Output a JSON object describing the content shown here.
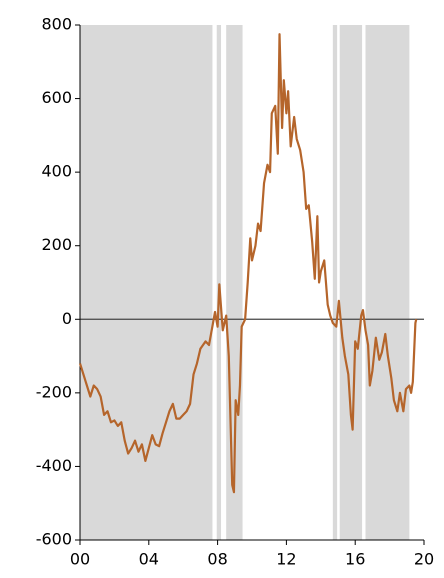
{
  "chart_data": {
    "type": "line",
    "x": [
      0,
      0.2,
      0.4,
      0.6,
      0.8,
      1.0,
      1.2,
      1.4,
      1.6,
      1.8,
      2.0,
      2.2,
      2.4,
      2.6,
      2.8,
      3.0,
      3.2,
      3.4,
      3.6,
      3.8,
      4.0,
      4.2,
      4.4,
      4.6,
      4.8,
      5.0,
      5.2,
      5.4,
      5.6,
      5.8,
      6.0,
      6.2,
      6.4,
      6.6,
      6.8,
      7.0,
      7.3,
      7.5,
      7.85,
      8.0,
      8.1,
      8.3,
      8.5,
      8.65,
      8.85,
      8.95,
      9.05,
      9.2,
      9.3,
      9.4,
      9.6,
      9.75,
      9.9,
      10.0,
      10.2,
      10.35,
      10.5,
      10.7,
      10.9,
      11.05,
      11.15,
      11.35,
      11.5,
      11.6,
      11.75,
      11.85,
      12.0,
      12.1,
      12.25,
      12.45,
      12.6,
      12.8,
      13.0,
      13.15,
      13.3,
      13.5,
      13.65,
      13.8,
      13.9,
      14.0,
      14.2,
      14.4,
      14.55,
      14.7,
      14.9,
      15.05,
      15.25,
      15.4,
      15.6,
      15.75,
      15.85,
      16.0,
      16.15,
      16.35,
      16.45,
      16.6,
      16.75,
      16.85,
      17.0,
      17.2,
      17.4,
      17.55,
      17.75,
      17.9,
      18.1,
      18.25,
      18.45,
      18.6,
      18.8,
      18.95,
      19.15,
      19.25,
      19.35,
      19.5,
      19.55
    ],
    "series": [
      {
        "color": "#b5652b",
        "values": [
          -120,
          -150,
          -180,
          -210,
          -180,
          -190,
          -210,
          -260,
          -250,
          -280,
          -275,
          -290,
          -280,
          -330,
          -365,
          -350,
          -330,
          -360,
          -340,
          -385,
          -350,
          -315,
          -340,
          -345,
          -310,
          -280,
          -250,
          -230,
          -270,
          -270,
          -260,
          -250,
          -230,
          -150,
          -120,
          -80,
          -60,
          -70,
          20,
          -20,
          95,
          -30,
          10,
          -100,
          -450,
          -470,
          -220,
          -260,
          -180,
          -20,
          0,
          100,
          220,
          160,
          200,
          260,
          240,
          370,
          420,
          400,
          560,
          580,
          450,
          775,
          520,
          650,
          560,
          620,
          470,
          550,
          490,
          460,
          400,
          300,
          310,
          210,
          110,
          280,
          100,
          130,
          160,
          40,
          10,
          -10,
          -20,
          50,
          -50,
          -100,
          -150,
          -260,
          -300,
          -60,
          -80,
          10,
          25,
          -30,
          -70,
          -180,
          -140,
          -50,
          -110,
          -90,
          -40,
          -100,
          -160,
          -220,
          -250,
          -200,
          -250,
          -190,
          -180,
          -200,
          -170,
          -10,
          0
        ]
      }
    ],
    "shaded_regions": [
      [
        0,
        7.7
      ],
      [
        7.95,
        8.2
      ],
      [
        8.5,
        9.45
      ],
      [
        14.7,
        14.95
      ],
      [
        15.1,
        16.4
      ],
      [
        16.6,
        19.15
      ]
    ],
    "shade_color": "#d9d9d9",
    "xlim": [
      0,
      20
    ],
    "xticks": [
      {
        "value": 0,
        "label": "00"
      },
      {
        "value": 4,
        "label": "04"
      },
      {
        "value": 8,
        "label": "08"
      },
      12,
      16,
      20
    ],
    "ylim": [
      -600,
      800
    ],
    "yticks": [
      -600,
      -400,
      -200,
      0,
      200,
      400,
      600,
      800
    ]
  }
}
